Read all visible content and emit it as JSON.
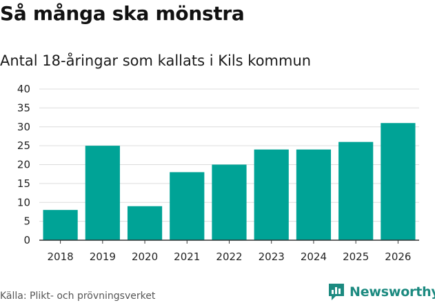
{
  "header": {
    "title": "Så många ska mönstra",
    "subtitle": "Antal 18-åringar som kallats i Kils kommun"
  },
  "footer": {
    "source": "Källa: Plikt- och prövningsverket",
    "brand": "Newsworthy"
  },
  "colors": {
    "bar": "#00a396",
    "grid": "#dcdcdc",
    "axis": "#333333",
    "brand": "#1c8a80"
  },
  "chart_data": {
    "type": "bar",
    "title": "Så många ska mönstra",
    "subtitle": "Antal 18-åringar som kallats i Kils kommun",
    "categories": [
      "2018",
      "2019",
      "2020",
      "2021",
      "2022",
      "2023",
      "2024",
      "2025",
      "2026"
    ],
    "values": [
      8,
      25,
      9,
      18,
      20,
      24,
      24,
      26,
      31
    ],
    "ylim": [
      0,
      40
    ],
    "yticks": [
      0,
      5,
      10,
      15,
      20,
      25,
      30,
      35,
      40
    ],
    "xlabel": "",
    "ylabel": "",
    "grid": true,
    "legend": "none"
  }
}
